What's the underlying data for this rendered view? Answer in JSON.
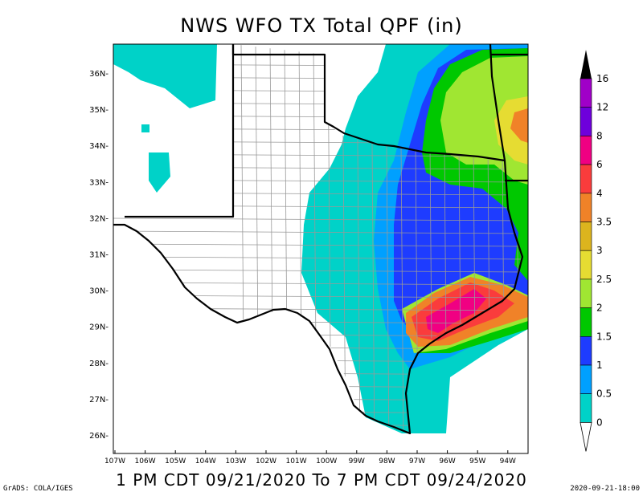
{
  "title": "NWS WFO TX Total QPF (in)",
  "subtitle": "1 PM CDT 09/21/2020 To 7 PM CDT 09/24/2020",
  "footer_left": "GrADS: COLA/IGES",
  "footer_right": "2020-09-21-18:00",
  "lat_labels": [
    "36N",
    "35N",
    "34N",
    "33N",
    "32N",
    "31N",
    "30N",
    "29N",
    "28N",
    "27N",
    "26N"
  ],
  "lon_labels": [
    "107W",
    "106W",
    "105W",
    "104W",
    "103W",
    "102W",
    "101W",
    "100W",
    "99W",
    "98W",
    "97W",
    "96W",
    "95W",
    "94W"
  ],
  "legend": {
    "labels": [
      "16",
      "12",
      "8",
      "6",
      "4",
      "3.5",
      "3",
      "2.5",
      "2",
      "1.5",
      "1",
      "0.5",
      "0"
    ],
    "colors": [
      "#a000c8",
      "#6e00dc",
      "#f00082",
      "#fa3c3c",
      "#f08228",
      "#dcb41e",
      "#e6dc32",
      "#a0e632",
      "#00c800",
      "#1e3cff",
      "#00a0ff",
      "#00d2c8"
    ]
  },
  "colors": {
    "lt_cyan": "#00d2c8",
    "lt_blue": "#00a0ff",
    "blue": "#1e3cff",
    "green": "#00c800",
    "lt_green": "#a0e632",
    "yellow": "#e6dc32",
    "orange": "#f08228",
    "red": "#fa3c3c",
    "magenta": "#f00082"
  }
}
